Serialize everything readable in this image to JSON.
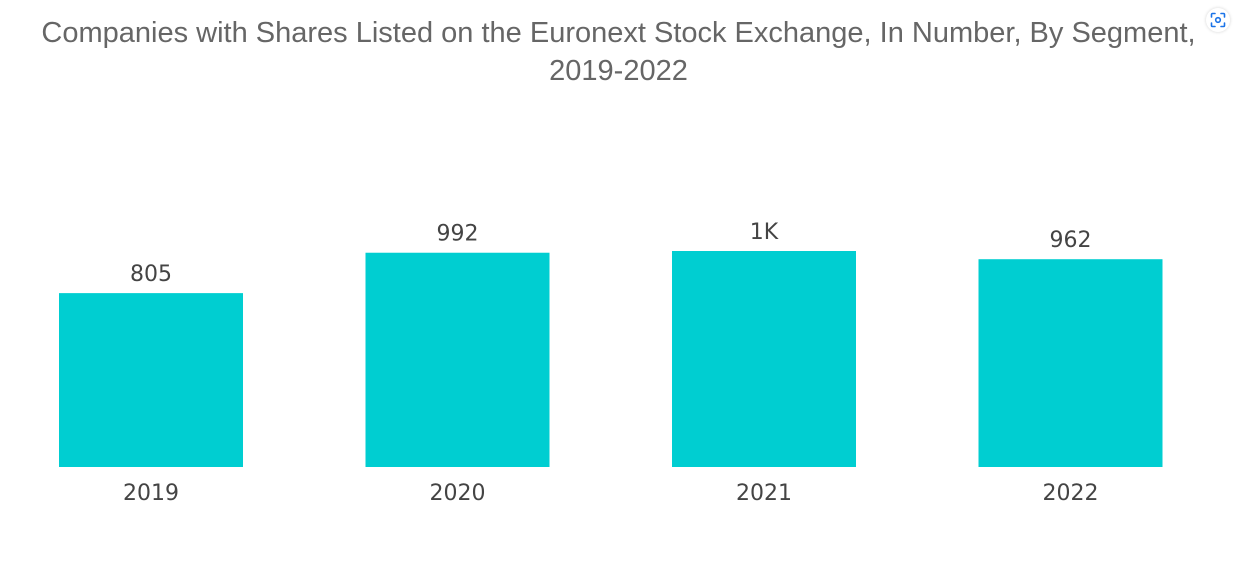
{
  "title": {
    "line1": "Companies with Shares Listed on the Euronext Stock Exchange, In Number, By Segment,",
    "line2": "2019-2022"
  },
  "toolbar": {
    "lens_icon": "image-search-icon"
  },
  "colors": {
    "bar": "#00CED1",
    "text": "#444444",
    "title": "#666666"
  },
  "chart_data": {
    "type": "bar",
    "categories": [
      "2019",
      "2020",
      "2021",
      "2022"
    ],
    "values": [
      805,
      992,
      1000,
      962
    ],
    "data_labels": [
      "805",
      "992",
      "1K",
      "962"
    ],
    "title": "Companies with Shares Listed on the Euronext Stock Exchange, In Number, By Segment, 2019-2022",
    "xlabel": "",
    "ylabel": "",
    "ylim": [
      0,
      1000
    ],
    "grid": false,
    "legend": "none"
  }
}
